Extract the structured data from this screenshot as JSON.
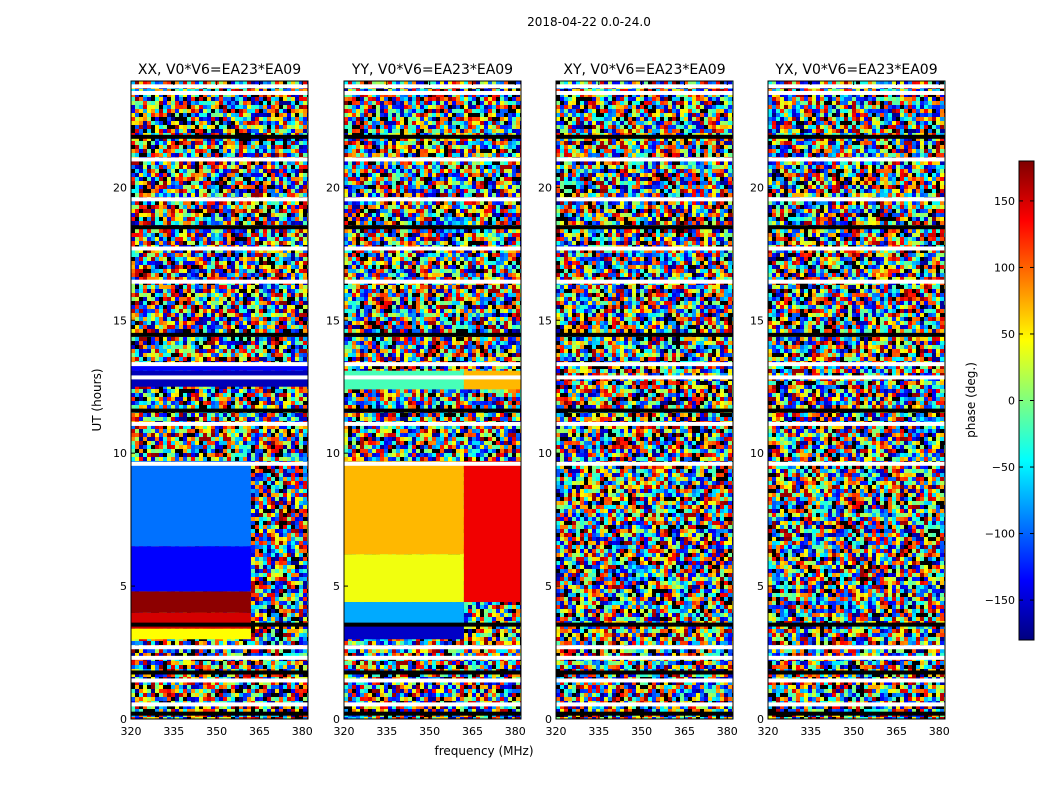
{
  "chart_data": {
    "type": "heatmap",
    "title": "2018-04-22 0.0-24.0",
    "xlabel": "frequency (MHz)",
    "ylabel": "UT (hours)",
    "xlim": [
      320,
      382
    ],
    "ylim": [
      0,
      24
    ],
    "xticks": [
      "320",
      "335",
      "350",
      "365",
      "380"
    ],
    "xtick_values": [
      320,
      335,
      350,
      365,
      380
    ],
    "yticks": [
      "0",
      "5",
      "10",
      "15",
      "20"
    ],
    "ytick_values": [
      0,
      5,
      10,
      15,
      20
    ],
    "colorbar": {
      "label": "phase (deg.)",
      "range": [
        -180,
        180
      ],
      "ticks": [
        "150",
        "100",
        "50",
        "0",
        "−50",
        "−100",
        "−150"
      ],
      "tick_values": [
        150,
        100,
        50,
        0,
        -50,
        -100,
        -150
      ],
      "colormap": "jet",
      "colors": [
        "#00007f",
        "#0000ff",
        "#007fff",
        "#00ffff",
        "#7fff7f",
        "#ffff00",
        "#ff7f00",
        "#ff0000",
        "#7f0000"
      ]
    },
    "panels": [
      {
        "title": "XX, V0*V6=EA23*EA09",
        "regions": [
          {
            "t0": 3.0,
            "t1": 3.4,
            "f0": 320,
            "f1": 362,
            "phase": 45
          },
          {
            "t0": 3.4,
            "t1": 4.0,
            "f0": 320,
            "f1": 362,
            "phase": 150
          },
          {
            "t0": 4.0,
            "t1": 4.8,
            "f0": 320,
            "f1": 362,
            "phase": 175
          },
          {
            "t0": 4.8,
            "t1": 6.5,
            "f0": 320,
            "f1": 362,
            "phase": -135
          },
          {
            "t0": 6.5,
            "t1": 9.7,
            "f0": 320,
            "f1": 362,
            "phase": -95
          },
          {
            "t0": 12.5,
            "t1": 13.1,
            "f0": 320,
            "f1": 382,
            "phase": -160
          },
          {
            "t0": 13.1,
            "t1": 13.3,
            "f0": 320,
            "f1": 382,
            "phase": -135
          }
        ]
      },
      {
        "title": "YY, V0*V6=EA23*EA09",
        "regions": [
          {
            "t0": 3.0,
            "t1": 3.6,
            "f0": 320,
            "f1": 362,
            "phase": -155
          },
          {
            "t0": 3.6,
            "t1": 4.4,
            "f0": 320,
            "f1": 362,
            "phase": -75
          },
          {
            "t0": 4.4,
            "t1": 6.2,
            "f0": 320,
            "f1": 362,
            "phase": 40
          },
          {
            "t0": 6.2,
            "t1": 9.7,
            "f0": 320,
            "f1": 362,
            "phase": 70
          },
          {
            "t0": 4.4,
            "t1": 9.7,
            "f0": 362,
            "f1": 382,
            "phase": 140
          },
          {
            "t0": 12.4,
            "t1": 13.1,
            "f0": 320,
            "f1": 362,
            "phase": -20
          },
          {
            "t0": 12.4,
            "t1": 13.1,
            "f0": 362,
            "f1": 382,
            "phase": 70
          }
        ]
      },
      {
        "title": "XY, V0*V6=EA23*EA09",
        "regions": []
      },
      {
        "title": "YX, V0*V6=EA23*EA09",
        "regions": []
      }
    ],
    "flagged_hours": [
      0.2,
      0.55,
      1.45,
      1.75,
      2.3,
      2.7,
      3.55,
      9.6,
      11.1,
      11.6,
      12.85,
      13.35,
      14.45,
      16.45,
      17.7,
      18.5,
      19.55,
      21.05,
      21.9,
      23.55,
      23.8
    ]
  }
}
